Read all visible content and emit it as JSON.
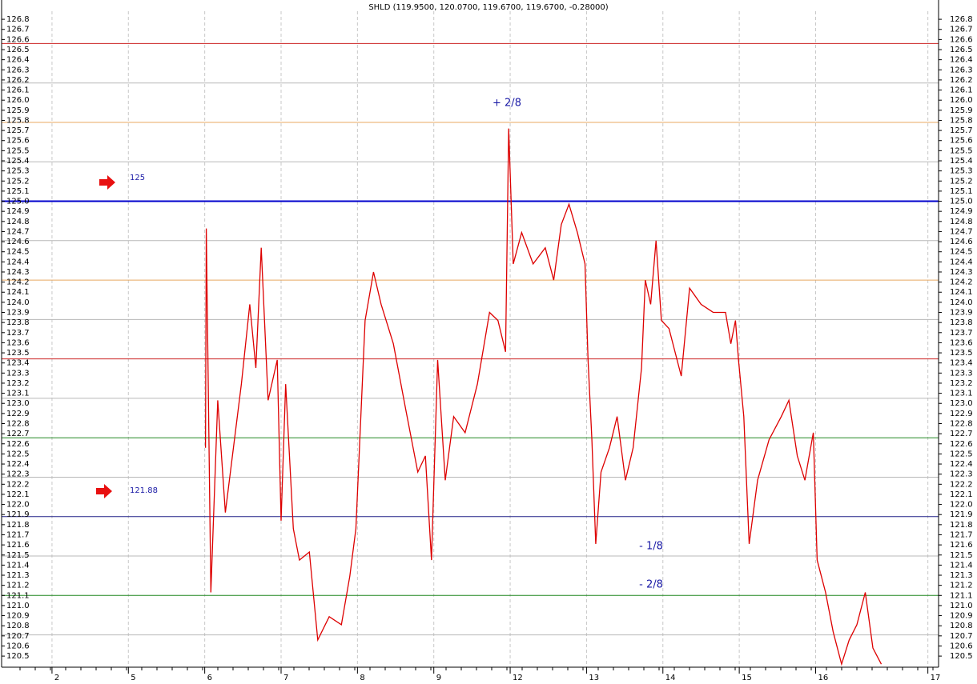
{
  "chart_data": {
    "type": "line",
    "title": "SHLD (119.9500, 120.0700, 119.6700, 119.6700, -0.28000)",
    "xlim": [
      -0.66,
      11.61
    ],
    "ylim": [
      120.39,
      126.88
    ],
    "xticks": [
      {
        "value": 0,
        "label": "2"
      },
      {
        "value": 1,
        "label": "5"
      },
      {
        "value": 2,
        "label": "6"
      },
      {
        "value": 3,
        "label": "7"
      },
      {
        "value": 4,
        "label": "8"
      },
      {
        "value": 5,
        "label": "9"
      },
      {
        "value": 6,
        "label": "12"
      },
      {
        "value": 7,
        "label": "13"
      },
      {
        "value": 8,
        "label": "14"
      },
      {
        "value": 9,
        "label": "15"
      },
      {
        "value": 10,
        "label": "16"
      },
      {
        "value": 11.47,
        "label": "17"
      }
    ],
    "yticks": [
      120.5,
      120.6,
      120.7,
      120.8,
      120.9,
      {
        "value": 121,
        "label": "121.0"
      },
      121.1,
      121.2,
      121.3,
      121.4,
      121.5,
      121.6,
      121.7,
      121.8,
      121.9,
      {
        "value": 122,
        "label": "122.0"
      },
      122.1,
      122.2,
      122.3,
      122.4,
      122.5,
      122.6,
      122.7,
      122.8,
      122.9,
      {
        "value": 123,
        "label": "123.0"
      },
      123.1,
      123.2,
      123.3,
      123.4,
      123.5,
      123.6,
      123.7,
      123.8,
      123.9,
      {
        "value": 124,
        "label": "124.0"
      },
      124.1,
      124.2,
      124.3,
      124.4,
      124.5,
      124.6,
      124.7,
      124.8,
      124.9,
      {
        "value": 125,
        "label": "125.0"
      },
      125.1,
      125.2,
      125.3,
      125.4,
      125.5,
      125.6,
      125.7,
      125.8,
      125.9,
      {
        "value": 126,
        "label": "126.0"
      },
      126.1,
      126.2,
      126.3,
      126.4,
      126.5,
      126.6,
      126.7,
      126.8
    ],
    "grid": true,
    "levels": [
      {
        "value": 126.56,
        "color": "#cc2222"
      },
      {
        "value": 126.17,
        "color": "#b8b8b8"
      },
      {
        "value": 125.78,
        "color": "#e8a860"
      },
      {
        "value": 125.39,
        "color": "#b8b8b8"
      },
      {
        "value": 125.0,
        "color": "#0000cc"
      },
      {
        "value": 124.61,
        "color": "#b8b8b8"
      },
      {
        "value": 124.22,
        "color": "#e8a860"
      },
      {
        "value": 123.83,
        "color": "#b8b8b8"
      },
      {
        "value": 123.44,
        "color": "#cc2222"
      },
      {
        "value": 123.05,
        "color": "#b8b8b8"
      },
      {
        "value": 122.66,
        "color": "#228822"
      },
      {
        "value": 122.27,
        "color": "#b8b8b8"
      },
      {
        "value": 121.88,
        "color": "#222288"
      },
      {
        "value": 121.49,
        "color": "#b8b8b8"
      },
      {
        "value": 121.1,
        "color": "#228822"
      },
      {
        "value": 120.71,
        "color": "#b8b8b8"
      }
    ],
    "annotations": [
      "+ 2/8",
      "125",
      "121.88",
      "- 1/8",
      "- 2/8"
    ],
    "series": [
      {
        "color": "#dd0000",
        "x": [
          2.01,
          2.02,
          2.08,
          2.17,
          2.27,
          2.48,
          2.59,
          2.67,
          2.74,
          2.83,
          2.95,
          3.0,
          3.06,
          3.16,
          3.24,
          3.37,
          3.48,
          3.63,
          3.79,
          3.9,
          3.98,
          4.1,
          4.21,
          4.31,
          4.47,
          4.63,
          4.79,
          4.89,
          4.97,
          5.05,
          5.15,
          5.26,
          5.41,
          5.57,
          5.73,
          5.84,
          5.94,
          5.98,
          6.04,
          6.15,
          6.3,
          6.46,
          6.57,
          6.67,
          6.77,
          6.88,
          6.98,
          7.02,
          7.07,
          7.12,
          7.19,
          7.3,
          7.4,
          7.51,
          7.61,
          7.72,
          7.77,
          7.84,
          7.91,
          7.98,
          8.08,
          8.24,
          8.35,
          8.5,
          8.66,
          8.82,
          8.89,
          8.95,
          8.99,
          9.06,
          9.13,
          9.24,
          9.39,
          9.55,
          9.65,
          9.76,
          9.86,
          9.97,
          10.02,
          10.13,
          10.23,
          10.34,
          10.44,
          10.54,
          10.65,
          10.75,
          10.86
        ],
        "values": [
          122.56,
          124.73,
          121.13,
          123.03,
          121.92,
          123.19,
          123.98,
          123.35,
          124.54,
          123.03,
          123.43,
          121.84,
          123.19,
          121.76,
          121.45,
          121.53,
          120.66,
          120.89,
          120.81,
          121.29,
          121.76,
          123.82,
          124.3,
          123.98,
          123.59,
          122.95,
          122.32,
          122.48,
          121.45,
          123.43,
          122.24,
          122.87,
          122.71,
          123.19,
          123.9,
          123.82,
          123.51,
          125.72,
          124.38,
          124.69,
          124.38,
          124.54,
          124.22,
          124.77,
          124.97,
          124.69,
          124.38,
          123.43,
          122.64,
          121.61,
          122.32,
          122.56,
          122.87,
          122.24,
          122.56,
          123.35,
          124.22,
          123.98,
          124.61,
          123.82,
          123.74,
          123.27,
          124.14,
          123.98,
          123.9,
          123.9,
          123.59,
          123.82,
          123.43,
          122.87,
          121.61,
          122.24,
          122.64,
          122.87,
          123.03,
          122.48,
          122.24,
          122.71,
          121.45,
          121.13,
          120.74,
          120.42,
          120.66,
          120.81,
          121.13,
          120.58,
          120.42
        ]
      }
    ]
  }
}
